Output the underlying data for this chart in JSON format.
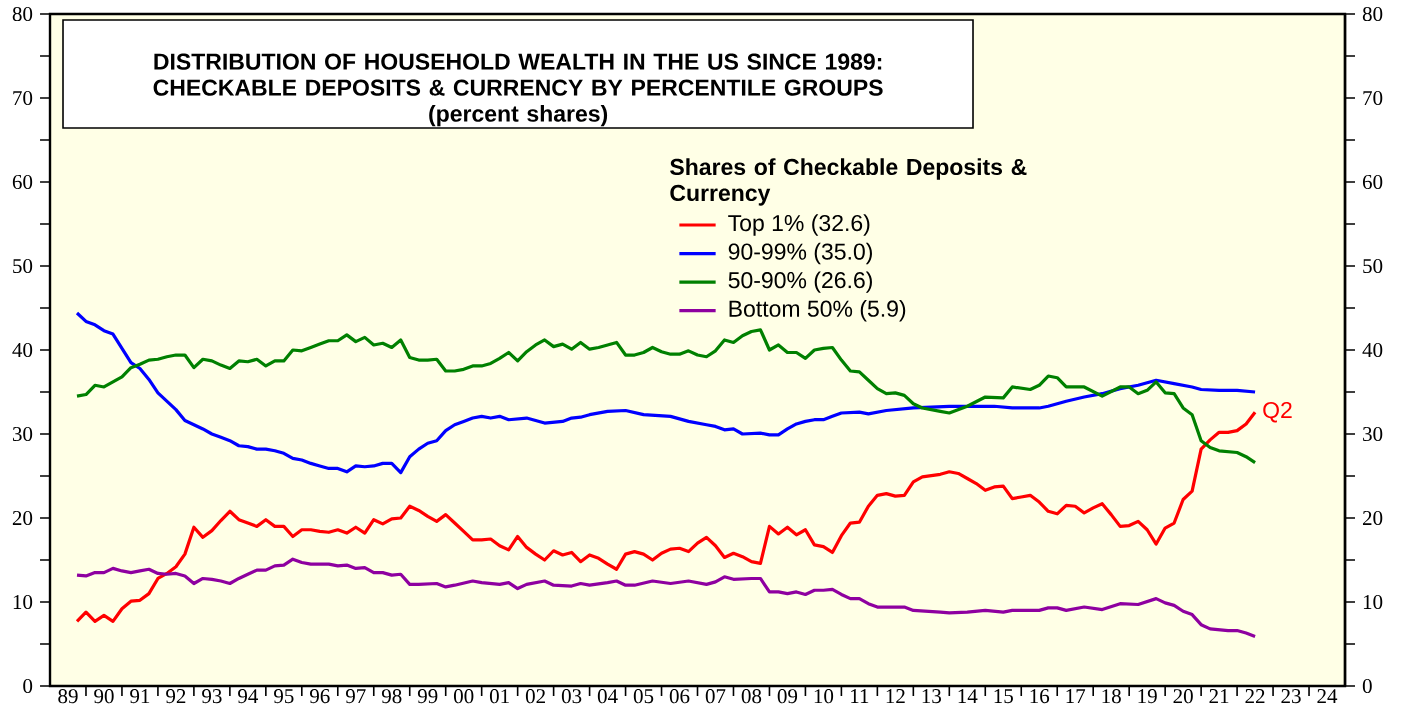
{
  "chart_data": {
    "type": "line",
    "title": "DISTRIBUTION OF HOUSEHOLD WEALTH IN THE US SINCE 1989: CHECKABLE DEPOSITS & CURRENCY BY PERCENTILE GROUPS",
    "subtitle": "(percent shares)",
    "legend_title": "Shares of Checkable Deposits & Currency",
    "legend": "top",
    "marker": "none",
    "line_style": "solid",
    "xlim": [
      "1989",
      "2025"
    ],
    "ylim": [
      0,
      80
    ],
    "y2lim": [
      0,
      80
    ],
    "xticks": [
      {
        "value": "1989-07",
        "label": "89"
      },
      {
        "value": "1990",
        "label": null
      },
      {
        "value": "1990-07",
        "label": "90"
      },
      {
        "value": "1991",
        "label": null
      },
      {
        "value": "1991-07",
        "label": "91"
      },
      {
        "value": "1992",
        "label": null
      },
      {
        "value": "1992-07",
        "label": "92"
      },
      {
        "value": "1993",
        "label": null
      },
      {
        "value": "1993-07",
        "label": "93"
      },
      {
        "value": "1994",
        "label": null
      },
      {
        "value": "1994-07",
        "label": "94"
      },
      {
        "value": "1995",
        "label": null
      },
      {
        "value": "1995-07",
        "label": "95"
      },
      {
        "value": "1996",
        "label": null
      },
      {
        "value": "1996-07",
        "label": "96"
      },
      {
        "value": "1997",
        "label": null
      },
      {
        "value": "1997-07",
        "label": "97"
      },
      {
        "value": "1998",
        "label": null
      },
      {
        "value": "1998-07",
        "label": "98"
      },
      {
        "value": "1999",
        "label": null
      },
      {
        "value": "1999-07",
        "label": "99"
      },
      {
        "value": "2000",
        "label": null
      },
      {
        "value": "2000-07",
        "label": "00"
      },
      {
        "value": "2001",
        "label": null
      },
      {
        "value": "2001-07",
        "label": "01"
      },
      {
        "value": "2002",
        "label": null
      },
      {
        "value": "2002-07",
        "label": "02"
      },
      {
        "value": "2003",
        "label": null
      },
      {
        "value": "2003-07",
        "label": "03"
      },
      {
        "value": "2004",
        "label": null
      },
      {
        "value": "2004-07",
        "label": "04"
      },
      {
        "value": "2005",
        "label": null
      },
      {
        "value": "2005-07",
        "label": "05"
      },
      {
        "value": "2006",
        "label": null
      },
      {
        "value": "2006-07",
        "label": "06"
      },
      {
        "value": "2007",
        "label": null
      },
      {
        "value": "2007-07",
        "label": "07"
      },
      {
        "value": "2008",
        "label": null
      },
      {
        "value": "2008-07",
        "label": "08"
      },
      {
        "value": "2009",
        "label": null
      },
      {
        "value": "2009-07",
        "label": "09"
      },
      {
        "value": "2010",
        "label": null
      },
      {
        "value": "2010-07",
        "label": "10"
      },
      {
        "value": "2011",
        "label": null
      },
      {
        "value": "2011-07",
        "label": "11"
      },
      {
        "value": "2012",
        "label": null
      },
      {
        "value": "2012-07",
        "label": "12"
      },
      {
        "value": "2013",
        "label": null
      },
      {
        "value": "2013-07",
        "label": "13"
      },
      {
        "value": "2014",
        "label": null
      },
      {
        "value": "2014-07",
        "label": "14"
      },
      {
        "value": "2015",
        "label": null
      },
      {
        "value": "2015-07",
        "label": "15"
      },
      {
        "value": "2016",
        "label": null
      },
      {
        "value": "2016-07",
        "label": "16"
      },
      {
        "value": "2017",
        "label": null
      },
      {
        "value": "2017-07",
        "label": "17"
      },
      {
        "value": "2018",
        "label": null
      },
      {
        "value": "2018-07",
        "label": "18"
      },
      {
        "value": "2019",
        "label": null
      },
      {
        "value": "2019-07",
        "label": "19"
      },
      {
        "value": "2020",
        "label": null
      },
      {
        "value": "2020-07",
        "label": "20"
      },
      {
        "value": "2021",
        "label": null
      },
      {
        "value": "2021-07",
        "label": "21"
      },
      {
        "value": "2022",
        "label": null
      },
      {
        "value": "2022-07",
        "label": "22"
      },
      {
        "value": "2023",
        "label": null
      },
      {
        "value": "2023-07",
        "label": "23"
      },
      {
        "value": "2024",
        "label": null
      },
      {
        "value": "2024-07",
        "label": "24"
      }
    ],
    "yticks": [
      0,
      {
        "value": 5,
        "label": null
      },
      10,
      {
        "value": 15,
        "label": null
      },
      20,
      {
        "value": 25,
        "label": null
      },
      30,
      {
        "value": 35,
        "label": null
      },
      40,
      {
        "value": 45,
        "label": null
      },
      50,
      {
        "value": 55,
        "label": null
      },
      60,
      {
        "value": 65,
        "label": null
      },
      70,
      {
        "value": 75,
        "label": null
      },
      80
    ],
    "y2ticks": [
      0,
      {
        "value": 5,
        "label": null
      },
      10,
      {
        "value": 15,
        "label": null
      },
      20,
      {
        "value": 25,
        "label": null
      },
      30,
      {
        "value": 35,
        "label": null
      },
      40,
      {
        "value": 45,
        "label": null
      },
      50,
      {
        "value": 55,
        "label": null
      },
      60,
      {
        "value": 65,
        "label": null
      },
      70,
      {
        "value": 75,
        "label": null
      },
      80
    ],
    "annotations": [
      {
        "text": "Q2",
        "x": "2022-07",
        "y": 32.6
      }
    ],
    "series": [
      {
        "name": "Top 1% (32.6)",
        "color": "#ff0000",
        "x": [
          "1989-10",
          "1990-01",
          "1990-04",
          "1990-07",
          "1990-10",
          "1991-01",
          "1991-04",
          "1991-07",
          "1991-10",
          "1992-01",
          "1992-04",
          "1992-07",
          "1992-10",
          "1993-01",
          "1993-04",
          "1993-07",
          "1993-10",
          "1994-01",
          "1994-04",
          "1994-07",
          "1994-10",
          "1995-01",
          "1995-04",
          "1995-07",
          "1995-10",
          "1996-01",
          "1996-04",
          "1996-07",
          "1996-10",
          "1997-01",
          "1997-04",
          "1997-07",
          "1997-10",
          "1998-01",
          "1998-04",
          "1998-07",
          "1998-10",
          "1999-01",
          "1999-04",
          "1999-07",
          "1999-10",
          "2000-01",
          "2000-04",
          "2000-07",
          "2000-10",
          "2001-01",
          "2001-04",
          "2001-07",
          "2001-10",
          "2002-01",
          "2002-04",
          "2002-07",
          "2002-10",
          "2003-01",
          "2003-04",
          "2003-07",
          "2003-10",
          "2004-01",
          "2004-04",
          "2004-07",
          "2004-10",
          "2005-01",
          "2005-04",
          "2005-07",
          "2005-10",
          "2006-01",
          "2006-04",
          "2006-07",
          "2006-10",
          "2007-01",
          "2007-04",
          "2007-07",
          "2007-10",
          "2008-01",
          "2008-04",
          "2008-07",
          "2008-10",
          "2009-01",
          "2009-04",
          "2009-07",
          "2009-10",
          "2010-01",
          "2010-04",
          "2010-07",
          "2010-10",
          "2011-01",
          "2011-04",
          "2011-07",
          "2011-10",
          "2012-01",
          "2012-04",
          "2012-07",
          "2012-10",
          "2013-01",
          "2013-04",
          "2013-10",
          "2014-01",
          "2014-04",
          "2014-07",
          "2014-10",
          "2015-01",
          "2015-04",
          "2015-07",
          "2015-10",
          "2016-01",
          "2016-04",
          "2016-07",
          "2016-10",
          "2017-01",
          "2017-04",
          "2017-07",
          "2017-10",
          "2018-01",
          "2018-04",
          "2018-07",
          "2018-10",
          "2019-01",
          "2019-04",
          "2019-07",
          "2019-10",
          "2020-01",
          "2020-04",
          "2020-07",
          "2020-10",
          "2021-01",
          "2021-04",
          "2021-07",
          "2021-10",
          "2022-01",
          "2022-04",
          "2022-07"
        ],
        "values": [
          7.7,
          8.8,
          7.7,
          8.4,
          7.7,
          9.2,
          10.1,
          10.2,
          11.0,
          12.8,
          13.4,
          14.2,
          15.7,
          18.9,
          17.7,
          18.5,
          19.7,
          20.8,
          19.8,
          19.4,
          19.0,
          19.8,
          19.0,
          19.0,
          17.8,
          18.6,
          18.6,
          18.4,
          18.3,
          18.6,
          18.2,
          18.9,
          18.2,
          19.8,
          19.3,
          19.9,
          20.0,
          21.4,
          20.9,
          20.2,
          19.6,
          20.4,
          19.4,
          18.4,
          17.4,
          17.4,
          17.5,
          16.7,
          16.2,
          17.8,
          16.5,
          15.7,
          15.0,
          16.1,
          15.6,
          15.9,
          14.8,
          15.6,
          15.2,
          14.5,
          13.9,
          15.7,
          16.0,
          15.7,
          15.0,
          15.8,
          16.3,
          16.4,
          16.0,
          17.0,
          17.7,
          16.7,
          15.3,
          15.8,
          15.4,
          14.8,
          14.6,
          19.0,
          18.1,
          18.9,
          18.0,
          18.6,
          16.8,
          16.6,
          15.9,
          17.9,
          19.4,
          19.5,
          21.4,
          22.7,
          22.9,
          22.6,
          22.7,
          24.3,
          24.9,
          25.2,
          25.5,
          25.3,
          24.7,
          24.1,
          23.3,
          23.7,
          23.8,
          22.3,
          22.5,
          22.7,
          21.9,
          20.8,
          20.5,
          21.5,
          21.4,
          20.6,
          21.2,
          21.7,
          20.4,
          19.0,
          19.1,
          19.6,
          18.6,
          16.9,
          18.8,
          19.4,
          22.2,
          23.2,
          28.2,
          29.3,
          30.2,
          30.2,
          30.4,
          31.2,
          32.6
        ]
      },
      {
        "name": "90-99% (35.0)",
        "color": "#0000ff",
        "x": [
          "1989-10",
          "1990-01",
          "1990-04",
          "1990-07",
          "1990-10",
          "1991-01",
          "1991-04",
          "1991-07",
          "1991-10",
          "1992-01",
          "1992-04",
          "1992-07",
          "1992-10",
          "1993-01",
          "1993-04",
          "1993-07",
          "1993-10",
          "1994-01",
          "1994-04",
          "1994-07",
          "1994-10",
          "1995-01",
          "1995-04",
          "1995-07",
          "1995-10",
          "1996-01",
          "1996-04",
          "1996-07",
          "1996-10",
          "1997-01",
          "1997-04",
          "1997-07",
          "1997-10",
          "1998-01",
          "1998-04",
          "1998-07",
          "1998-10",
          "1999-01",
          "1999-04",
          "1999-07",
          "1999-10",
          "2000-01",
          "2000-04",
          "2000-07",
          "2000-10",
          "2001-01",
          "2001-04",
          "2001-07",
          "2001-10",
          "2002-04",
          "2002-10",
          "2003-04",
          "2003-07",
          "2003-10",
          "2004-01",
          "2004-07",
          "2005-01",
          "2005-07",
          "2006-04",
          "2006-10",
          "2007-04",
          "2007-07",
          "2007-10",
          "2008-01",
          "2008-04",
          "2008-10",
          "2009-01",
          "2009-04",
          "2009-07",
          "2009-10",
          "2010-01",
          "2010-04",
          "2010-07",
          "2010-10",
          "2011-01",
          "2011-07",
          "2011-10",
          "2012-04",
          "2013-01",
          "2014-01",
          "2015-04",
          "2015-10",
          "2016-07",
          "2016-10",
          "2017-04",
          "2017-10",
          "2018-04",
          "2018-10",
          "2019-04",
          "2019-10",
          "2020-04",
          "2020-10",
          "2021-01",
          "2021-07",
          "2022-01",
          "2022-07"
        ],
        "values": [
          44.4,
          43.4,
          43.0,
          42.3,
          41.9,
          40.2,
          38.5,
          37.8,
          36.5,
          34.9,
          33.9,
          32.9,
          31.6,
          31.1,
          30.6,
          30.0,
          29.6,
          29.2,
          28.6,
          28.5,
          28.2,
          28.2,
          28.0,
          27.7,
          27.1,
          26.9,
          26.5,
          26.2,
          25.9,
          25.9,
          25.5,
          26.2,
          26.1,
          26.2,
          26.5,
          26.5,
          25.4,
          27.3,
          28.2,
          28.9,
          29.2,
          30.4,
          31.1,
          31.5,
          31.9,
          32.1,
          31.9,
          32.1,
          31.7,
          31.9,
          31.3,
          31.5,
          31.9,
          32.0,
          32.3,
          32.7,
          32.8,
          32.3,
          32.1,
          31.5,
          31.1,
          30.9,
          30.5,
          30.6,
          30.0,
          30.1,
          29.9,
          29.9,
          30.6,
          31.2,
          31.5,
          31.7,
          31.7,
          32.1,
          32.5,
          32.6,
          32.4,
          32.8,
          33.1,
          33.3,
          33.3,
          33.1,
          33.1,
          33.3,
          33.9,
          34.4,
          34.8,
          35.4,
          35.8,
          36.4,
          36.0,
          35.6,
          35.3,
          35.2,
          35.2,
          35.0
        ]
      },
      {
        "name": "50-90% (26.6)",
        "color": "#008000",
        "x": [
          "1989-10",
          "1990-01",
          "1990-04",
          "1990-07",
          "1990-10",
          "1991-01",
          "1991-04",
          "1991-07",
          "1991-10",
          "1992-01",
          "1992-04",
          "1992-07",
          "1992-10",
          "1993-01",
          "1993-04",
          "1993-07",
          "1993-10",
          "1994-01",
          "1994-04",
          "1994-07",
          "1994-10",
          "1995-01",
          "1995-04",
          "1995-07",
          "1995-10",
          "1996-01",
          "1996-04",
          "1996-07",
          "1996-10",
          "1997-01",
          "1997-04",
          "1997-07",
          "1997-10",
          "1998-01",
          "1998-04",
          "1998-07",
          "1998-10",
          "1999-01",
          "1999-04",
          "1999-07",
          "1999-10",
          "2000-01",
          "2000-04",
          "2000-07",
          "2000-10",
          "2001-01",
          "2001-04",
          "2001-07",
          "2001-10",
          "2002-01",
          "2002-04",
          "2002-07",
          "2002-10",
          "2003-01",
          "2003-04",
          "2003-07",
          "2003-10",
          "2004-01",
          "2004-04",
          "2004-07",
          "2004-10",
          "2005-01",
          "2005-04",
          "2005-07",
          "2005-10",
          "2006-01",
          "2006-04",
          "2006-07",
          "2006-10",
          "2007-01",
          "2007-04",
          "2007-07",
          "2007-10",
          "2008-01",
          "2008-04",
          "2008-07",
          "2008-10",
          "2009-01",
          "2009-04",
          "2009-07",
          "2009-10",
          "2010-01",
          "2010-04",
          "2010-07",
          "2010-10",
          "2011-01",
          "2011-04",
          "2011-07",
          "2011-10",
          "2012-01",
          "2012-04",
          "2012-07",
          "2012-10",
          "2013-01",
          "2013-04",
          "2013-10",
          "2014-01",
          "2014-07",
          "2015-01",
          "2015-07",
          "2015-10",
          "2016-04",
          "2016-07",
          "2016-10",
          "2017-01",
          "2017-04",
          "2017-10",
          "2018-04",
          "2018-10",
          "2019-01",
          "2019-04",
          "2019-07",
          "2019-10",
          "2020-01",
          "2020-04",
          "2020-07",
          "2020-10",
          "2021-01",
          "2021-04",
          "2021-07",
          "2022-01",
          "2022-04",
          "2022-07"
        ],
        "values": [
          34.5,
          34.7,
          35.8,
          35.6,
          36.2,
          36.8,
          37.9,
          38.3,
          38.8,
          38.9,
          39.2,
          39.4,
          39.4,
          37.9,
          38.9,
          38.7,
          38.2,
          37.8,
          38.7,
          38.6,
          38.9,
          38.1,
          38.7,
          38.7,
          40.0,
          39.9,
          40.3,
          40.7,
          41.1,
          41.1,
          41.8,
          41.0,
          41.5,
          40.6,
          40.8,
          40.3,
          41.2,
          39.1,
          38.8,
          38.8,
          38.9,
          37.5,
          37.5,
          37.7,
          38.1,
          38.1,
          38.4,
          39.0,
          39.7,
          38.7,
          39.8,
          40.6,
          41.2,
          40.4,
          40.7,
          40.1,
          40.9,
          40.1,
          40.3,
          40.6,
          40.9,
          39.4,
          39.4,
          39.7,
          40.3,
          39.8,
          39.5,
          39.5,
          39.9,
          39.4,
          39.2,
          39.9,
          41.2,
          40.9,
          41.7,
          42.2,
          42.4,
          40.0,
          40.6,
          39.7,
          39.7,
          39.0,
          40.0,
          40.2,
          40.3,
          38.8,
          37.5,
          37.4,
          36.4,
          35.4,
          34.8,
          34.9,
          34.6,
          33.6,
          33.1,
          32.7,
          32.5,
          33.3,
          34.4,
          34.3,
          35.6,
          35.3,
          35.8,
          36.9,
          36.7,
          35.6,
          35.6,
          34.5,
          35.6,
          35.6,
          34.8,
          35.2,
          36.2,
          34.9,
          34.8,
          33.1,
          32.3,
          29.2,
          28.4,
          28.0,
          27.8,
          27.3,
          26.6
        ]
      },
      {
        "name": "Bottom 50% (5.9)",
        "color": "#8e00a0",
        "x": [
          "1989-10",
          "1990-01",
          "1990-04",
          "1990-07",
          "1990-10",
          "1991-01",
          "1991-04",
          "1991-07",
          "1991-10",
          "1992-01",
          "1992-04",
          "1992-07",
          "1992-10",
          "1993-01",
          "1993-04",
          "1993-07",
          "1993-10",
          "1994-01",
          "1994-04",
          "1994-07",
          "1994-10",
          "1995-01",
          "1995-04",
          "1995-07",
          "1995-10",
          "1996-01",
          "1996-04",
          "1996-07",
          "1996-10",
          "1997-01",
          "1997-04",
          "1997-07",
          "1997-10",
          "1998-01",
          "1998-04",
          "1998-07",
          "1998-10",
          "1999-01",
          "1999-04",
          "1999-10",
          "2000-01",
          "2000-04",
          "2000-10",
          "2001-01",
          "2001-07",
          "2001-10",
          "2002-01",
          "2002-04",
          "2002-10",
          "2003-01",
          "2003-07",
          "2003-10",
          "2004-01",
          "2004-07",
          "2004-10",
          "2005-01",
          "2005-04",
          "2005-10",
          "2006-04",
          "2006-10",
          "2007-04",
          "2007-07",
          "2007-10",
          "2008-01",
          "2008-07",
          "2008-10",
          "2009-01",
          "2009-04",
          "2009-07",
          "2009-10",
          "2010-01",
          "2010-04",
          "2010-07",
          "2010-10",
          "2011-01",
          "2011-04",
          "2011-07",
          "2011-10",
          "2012-01",
          "2012-04",
          "2012-10",
          "2013-01",
          "2013-10",
          "2014-01",
          "2014-07",
          "2015-01",
          "2015-07",
          "2015-10",
          "2016-07",
          "2016-10",
          "2017-01",
          "2017-04",
          "2017-10",
          "2018-04",
          "2018-10",
          "2019-04",
          "2019-10",
          "2020-01",
          "2020-04",
          "2020-07",
          "2020-10",
          "2021-01",
          "2021-04",
          "2021-10",
          "2022-01",
          "2022-04",
          "2022-07"
        ],
        "values": [
          13.2,
          13.1,
          13.5,
          13.5,
          14.0,
          13.7,
          13.5,
          13.7,
          13.9,
          13.4,
          13.3,
          13.4,
          13.1,
          12.2,
          12.8,
          12.7,
          12.5,
          12.2,
          12.8,
          13.3,
          13.8,
          13.8,
          14.3,
          14.4,
          15.1,
          14.7,
          14.5,
          14.5,
          14.5,
          14.3,
          14.4,
          14.0,
          14.1,
          13.5,
          13.5,
          13.2,
          13.3,
          12.1,
          12.1,
          12.2,
          11.8,
          12.0,
          12.5,
          12.3,
          12.1,
          12.3,
          11.6,
          12.1,
          12.5,
          12.0,
          11.9,
          12.2,
          12.0,
          12.3,
          12.5,
          12.0,
          12.0,
          12.5,
          12.2,
          12.5,
          12.1,
          12.4,
          13.0,
          12.7,
          12.8,
          12.8,
          11.2,
          11.2,
          11.0,
          11.2,
          10.9,
          11.4,
          11.4,
          11.5,
          10.9,
          10.4,
          10.4,
          9.8,
          9.4,
          9.4,
          9.4,
          9.0,
          8.8,
          8.7,
          8.8,
          9.0,
          8.8,
          9.0,
          9.0,
          9.3,
          9.3,
          9.0,
          9.4,
          9.1,
          9.8,
          9.7,
          10.4,
          9.9,
          9.6,
          8.9,
          8.5,
          7.3,
          6.8,
          6.6,
          6.6,
          6.3,
          5.9
        ]
      }
    ]
  }
}
